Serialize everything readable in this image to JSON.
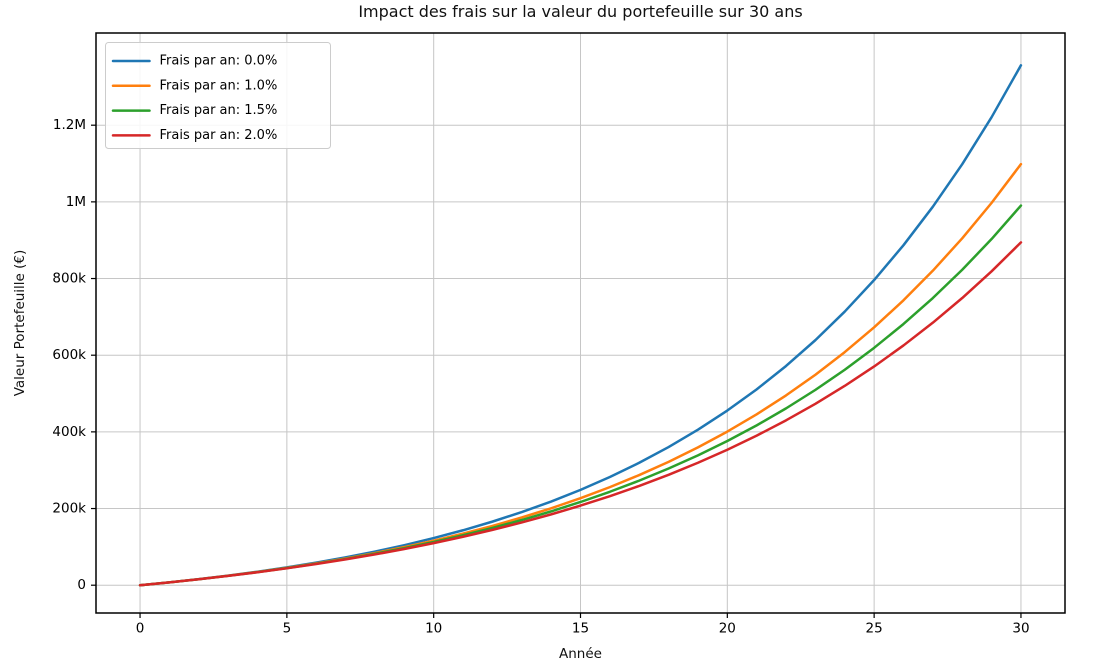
{
  "chart_data": {
    "type": "line",
    "title": "Impact des frais sur la valeur du portefeuille sur 30 ans",
    "xlabel": "Année",
    "ylabel": "Valeur Portefeuille (€)",
    "grid": true,
    "legend_position": "upper-left",
    "xlim": [
      -1.5,
      31.5
    ],
    "ylim": [
      -72500,
      1440500
    ],
    "xticks": [
      {
        "value": 0,
        "label": "0"
      },
      {
        "value": 5,
        "label": "5"
      },
      {
        "value": 10,
        "label": "10"
      },
      {
        "value": 15,
        "label": "15"
      },
      {
        "value": 20,
        "label": "20"
      },
      {
        "value": 25,
        "label": "25"
      },
      {
        "value": 30,
        "label": "30"
      }
    ],
    "yticks": [
      {
        "value": 0,
        "label": "0"
      },
      {
        "value": 200000,
        "label": "200k"
      },
      {
        "value": 400000,
        "label": "400k"
      },
      {
        "value": 600000,
        "label": "600k"
      },
      {
        "value": 800000,
        "label": "800k"
      },
      {
        "value": 1000000,
        "label": "1M"
      },
      {
        "value": 1200000,
        "label": "1.2M"
      }
    ],
    "x": [
      0,
      1,
      2,
      3,
      4,
      5,
      6,
      7,
      8,
      9,
      10,
      11,
      12,
      13,
      14,
      15,
      16,
      17,
      18,
      19,
      20,
      21,
      22,
      23,
      24,
      25,
      26,
      27,
      28,
      29,
      30
    ],
    "series": [
      {
        "name": "Frais par an: 0.0%",
        "color": "#1f77b4",
        "values": [
          0,
          7539,
          15868,
          25069,
          35233,
          46462,
          58867,
          72570,
          87709,
          104432,
          122907,
          143316,
          165863,
          190770,
          218285,
          248682,
          282262,
          319358,
          360338,
          405609,
          455621,
          510870,
          571904,
          639329,
          713815,
          796100,
          887001,
          987421,
          1098357,
          1220908,
          1356293
        ]
      },
      {
        "name": "Frais par an: 1.0%",
        "color": "#ff7f0e",
        "values": [
          0,
          7505,
          15713,
          24692,
          34513,
          45253,
          56995,
          69846,
          83903,
          99278,
          116105,
          134503,
          154623,
          176632,
          200704,
          227043,
          255846,
          287352,
          321812,
          359506,
          400724,
          445809,
          495124,
          549078,
          608094,
          672646,
          743261,
          820490,
          904964,
          997363,
          1098366
        ]
      },
      {
        "name": "Frais par an: 1.5%",
        "color": "#2ca02c",
        "values": [
          0,
          7487,
          15637,
          24506,
          34158,
          44666,
          56110,
          68556,
          82102,
          96846,
          112884,
          130362,
          149372,
          170062,
          192582,
          217072,
          243751,
          272784,
          304383,
          338774,
          376206,
          416942,
          461283,
          509544,
          562071,
          619216,
          681440,
          749153,
          822852,
          903065,
          990375
        ]
      },
      {
        "name": "Frais par an: 2.0%",
        "color": "#d62728",
        "values": [
          0,
          7470,
          15560,
          24321,
          33810,
          44086,
          55216,
          67268,
          80321,
          94457,
          109768,
          126349,
          144307,
          163755,
          184818,
          207624,
          232323,
          259072,
          288042,
          319416,
          353412,
          390229,
          430094,
          473267,
          520023,
          570628,
          625463,
          684852,
          749171,
          818829,
          894207
        ]
      }
    ],
    "colors": {
      "background": "#ffffff",
      "grid": "#c6c6c6",
      "spine": "#000000",
      "text": "#000000",
      "legend_border": "#cccccc"
    }
  }
}
